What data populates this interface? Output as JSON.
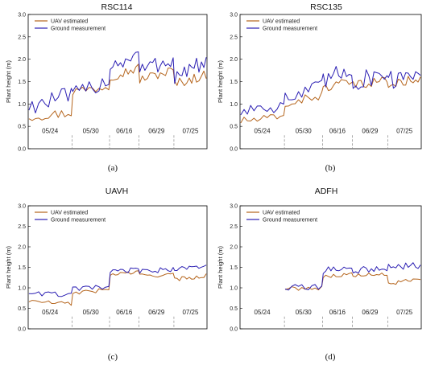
{
  "chart_data": [
    {
      "type": "line",
      "title": "RSC114",
      "ylabel": "Plant height (m)",
      "ylim": [
        0.0,
        3.0
      ],
      "yticks": [
        "0.0",
        "0.5",
        "1.0",
        "1.5",
        "2.0",
        "2.5",
        "3.0"
      ],
      "date_labels": [
        "05/24",
        "05/30",
        "06/16",
        "06/29",
        "07/25"
      ],
      "panel_label": "(a)",
      "legend_position": "top-left",
      "series": [
        {
          "name": "UAV estimated",
          "color": "#b5651d",
          "segments": [
            [
              0.72,
              0.8
            ],
            [
              1.28,
              1.4
            ],
            [
              1.62,
              1.8
            ],
            [
              1.55,
              1.75
            ],
            [
              1.45,
              1.65
            ]
          ],
          "amplitude": 0.11
        },
        {
          "name": "Ground measurement",
          "color": "#2b1fb3",
          "segments": [
            [
              0.95,
              1.2
            ],
            [
              1.18,
              1.55
            ],
            [
              1.85,
              2.1
            ],
            [
              1.75,
              2.0
            ],
            [
              1.6,
              1.95
            ]
          ],
          "amplitude": 0.2
        }
      ]
    },
    {
      "type": "line",
      "title": "RSC135",
      "ylabel": "Plant height (m)",
      "ylim": [
        0.0,
        3.0
      ],
      "yticks": [
        "0.0",
        "0.5",
        "1.0",
        "1.5",
        "2.0",
        "2.5",
        "3.0"
      ],
      "date_labels": [
        "05/24",
        "05/30",
        "06/16",
        "06/29",
        "07/25"
      ],
      "panel_label": "(b)",
      "legend_position": "top-left",
      "series": [
        {
          "name": "UAV estimated",
          "color": "#b5651d",
          "segments": [
            [
              0.62,
              0.7
            ],
            [
              1.0,
              1.2
            ],
            [
              1.35,
              1.5
            ],
            [
              1.4,
              1.55
            ],
            [
              1.4,
              1.6
            ]
          ],
          "amplitude": 0.1
        },
        {
          "name": "Ground measurement",
          "color": "#2b1fb3",
          "segments": [
            [
              0.85,
              1.05
            ],
            [
              1.1,
              1.35
            ],
            [
              1.5,
              1.8
            ],
            [
              1.45,
              1.75
            ],
            [
              1.5,
              1.8
            ]
          ],
          "amplitude": 0.22
        }
      ]
    },
    {
      "type": "line",
      "title": "UAVH",
      "ylabel": "Plant height (m)",
      "ylim": [
        0.0,
        3.0
      ],
      "yticks": [
        "0.0",
        "0.5",
        "1.0",
        "1.5",
        "2.0",
        "2.5",
        "3.0"
      ],
      "date_labels": [
        "05/24",
        "05/30",
        "06/16",
        "06/29",
        "07/25"
      ],
      "panel_label": "(c)",
      "legend_position": "top-left",
      "series": [
        {
          "name": "UAV estimated",
          "color": "#b5651d",
          "segments": [
            [
              0.68,
              0.6
            ],
            [
              0.88,
              0.95
            ],
            [
              1.33,
              1.38
            ],
            [
              1.3,
              1.32
            ],
            [
              1.2,
              1.3
            ]
          ],
          "amplitude": 0.05
        },
        {
          "name": "Ground measurement",
          "color": "#2b1fb3",
          "segments": [
            [
              0.88,
              0.82
            ],
            [
              0.97,
              1.02
            ],
            [
              1.38,
              1.45
            ],
            [
              1.4,
              1.45
            ],
            [
              1.45,
              1.55
            ]
          ],
          "amplitude": 0.06
        }
      ]
    },
    {
      "type": "line",
      "title": "ADFH",
      "ylabel": "Plant height (m)",
      "ylim": [
        0.0,
        3.0
      ],
      "yticks": [
        "0.0",
        "0.5",
        "1.0",
        "1.5",
        "2.0",
        "2.5",
        "3.0"
      ],
      "date_labels": [
        "05/24",
        "05/30",
        "06/16",
        "06/29",
        "07/25"
      ],
      "panel_label": "(d)",
      "legend_position": "top-left",
      "series": [
        {
          "name": "UAV estimated",
          "color": "#b5651d",
          "segments": [
            null,
            [
              0.98,
              1.0
            ],
            [
              1.28,
              1.33
            ],
            [
              1.3,
              1.32
            ],
            [
              1.1,
              1.2
            ]
          ],
          "amplitude": 0.05
        },
        {
          "name": "Ground measurement",
          "color": "#2b1fb3",
          "segments": [
            null,
            [
              1.0,
              1.02
            ],
            [
              1.42,
              1.5
            ],
            [
              1.42,
              1.48
            ],
            [
              1.5,
              1.55
            ]
          ],
          "amplitude": 0.08
        }
      ]
    }
  ]
}
